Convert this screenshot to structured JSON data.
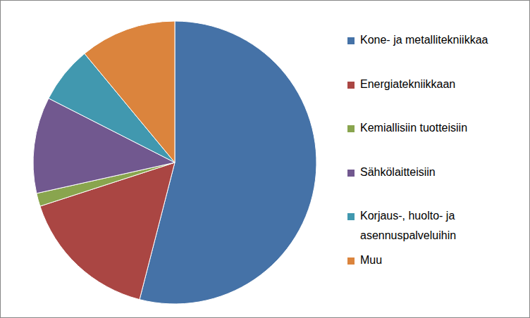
{
  "chart_data": {
    "type": "pie",
    "categories": [
      "Kone- ja metallitekniikkaa",
      "Energiatekniikkaan",
      "Kemiallisiin tuotteisiin",
      "Sähkölaitteisiin",
      "Korjaus-, huolto- ja asennuspalveluihin",
      "Muu"
    ],
    "values": [
      54,
      16,
      1.5,
      11,
      6.5,
      11
    ],
    "colors": [
      "#4572A7",
      "#AA4643",
      "#89A54E",
      "#71588F",
      "#4198AF",
      "#DB843D"
    ],
    "legend": "right"
  }
}
